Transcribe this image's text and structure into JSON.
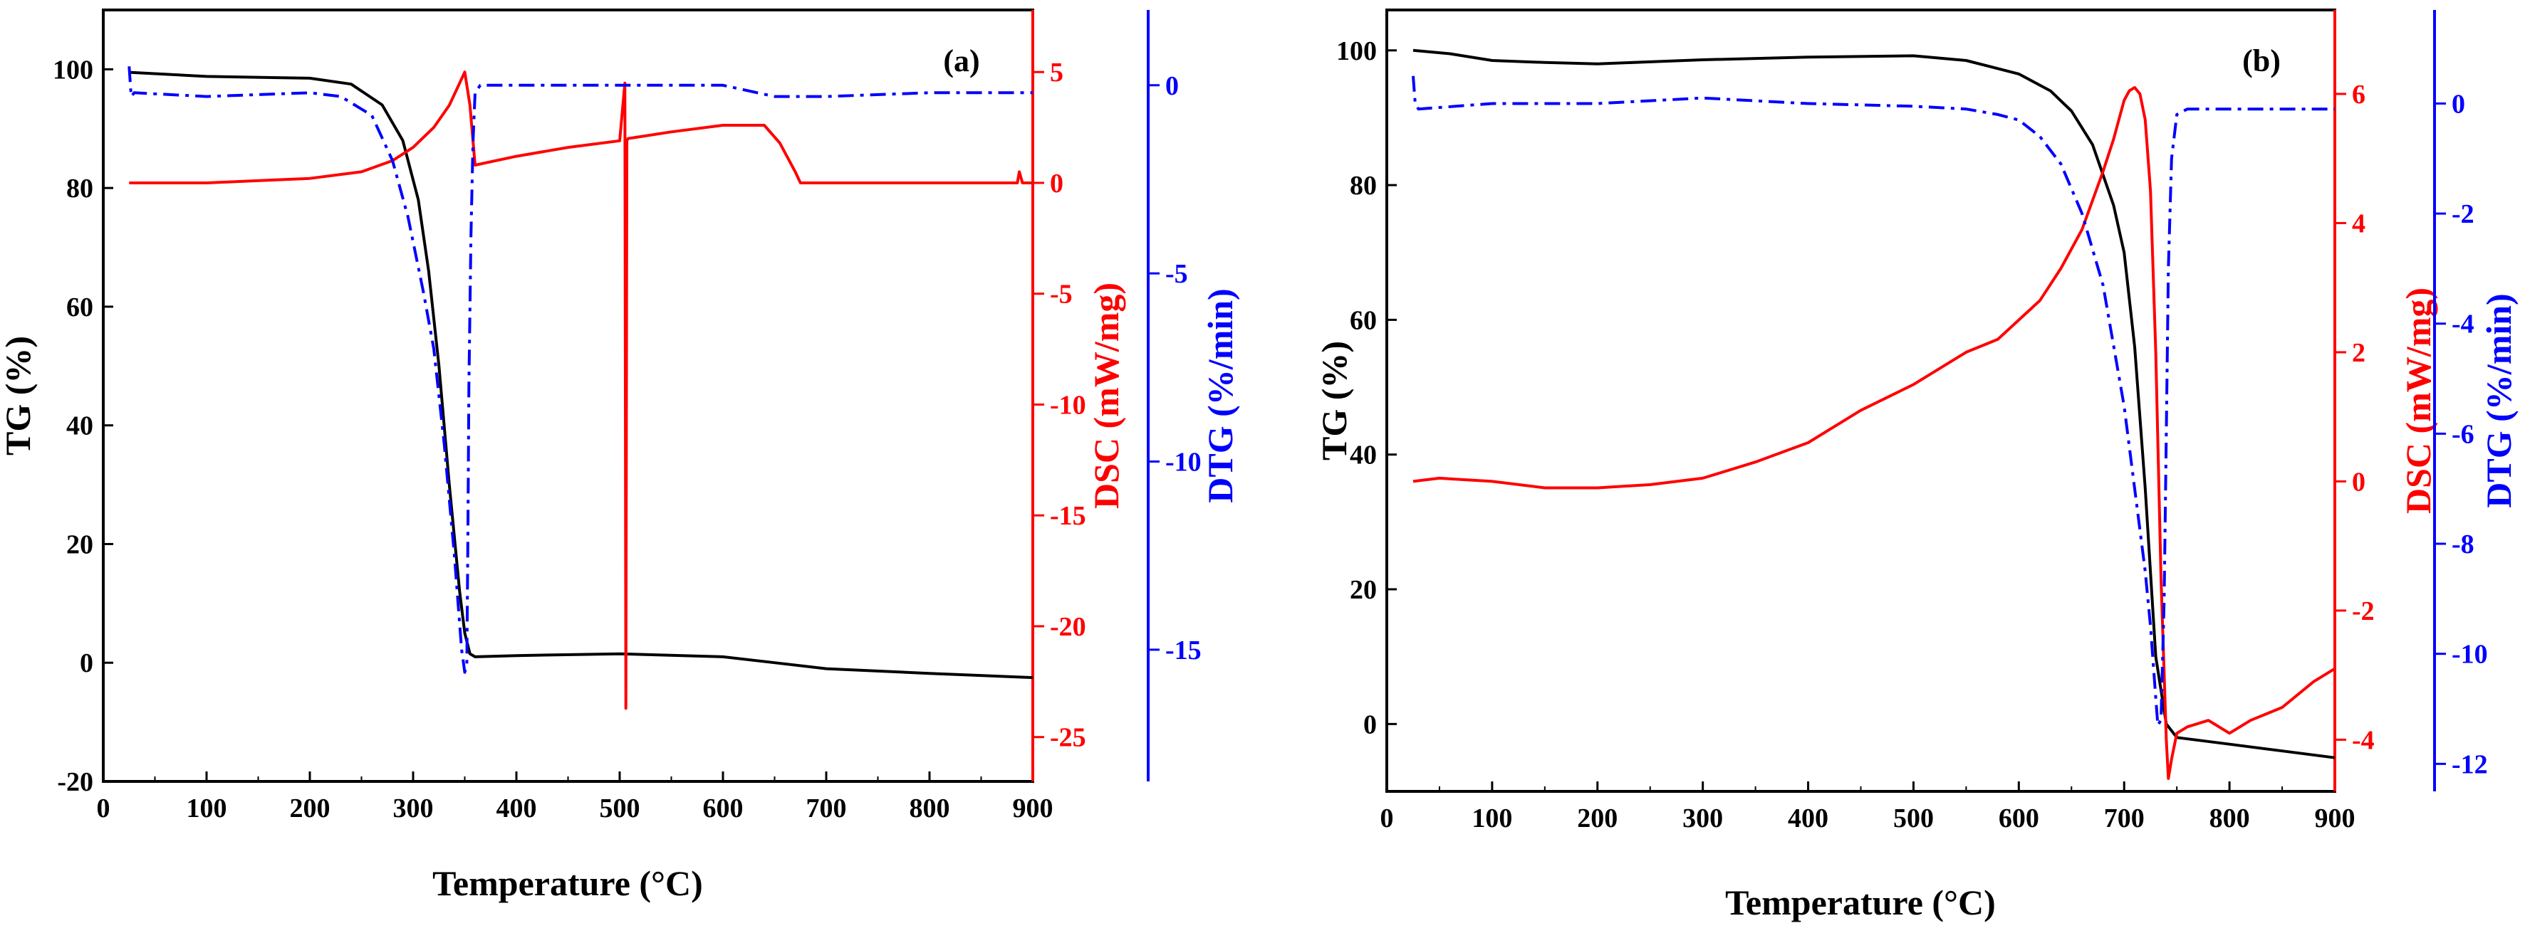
{
  "colors": {
    "tg": "#000000",
    "dsc": "#ff0000",
    "dtg": "#0000ff",
    "axis": "#000000"
  },
  "chart_data": [
    {
      "type": "line",
      "panel_label": "(a)",
      "xlabel": "Temperature (°C)",
      "xlim": [
        0,
        900
      ],
      "xticks": [
        0,
        100,
        200,
        300,
        400,
        500,
        600,
        700,
        800,
        900
      ],
      "axes": {
        "tg": {
          "label": "TG (%)",
          "lim": [
            -20,
            110
          ],
          "ticks": [
            -20,
            0,
            20,
            40,
            60,
            80,
            100
          ]
        },
        "dsc": {
          "label": "DSC (mW/mg)",
          "lim": [
            -27,
            7.8
          ],
          "ticks": [
            -25,
            -20,
            -15,
            -10,
            -5,
            0,
            5
          ]
        },
        "dtg": {
          "label": "DTG (%/min)",
          "lim": [
            -18.5,
            2
          ],
          "ticks": [
            -15,
            -10,
            -5,
            0
          ]
        }
      },
      "series": [
        {
          "name": "TG",
          "axis": "tg",
          "style": "solid",
          "x": [
            25,
            100,
            200,
            240,
            270,
            290,
            305,
            315,
            325,
            335,
            345,
            350,
            355,
            360,
            400,
            500,
            600,
            650,
            700,
            800,
            900
          ],
          "y": [
            99.5,
            98.8,
            98.5,
            97.5,
            94,
            88,
            78,
            66,
            50,
            30,
            12,
            5,
            1.5,
            1,
            1.2,
            1.5,
            1,
            0,
            -1,
            -1.8,
            -2.5
          ]
        },
        {
          "name": "DSC",
          "axis": "dsc",
          "style": "solid",
          "x": [
            25,
            100,
            200,
            250,
            280,
            300,
            320,
            335,
            345,
            350,
            355,
            360,
            400,
            450,
            500,
            505,
            506,
            507,
            508,
            550,
            600,
            640,
            655,
            670,
            675,
            700,
            800,
            885,
            887,
            890,
            900
          ],
          "y": [
            0,
            0,
            0.2,
            0.5,
            1,
            1.6,
            2.5,
            3.5,
            4.5,
            5,
            3.5,
            0.8,
            1.2,
            1.6,
            1.9,
            4.5,
            -23.7,
            1.9,
            2,
            2.3,
            2.6,
            2.6,
            1.8,
            0.5,
            0,
            0,
            0,
            0,
            0.5,
            0,
            0
          ]
        },
        {
          "name": "DTG",
          "axis": "dtg",
          "style": "dashdot",
          "x": [
            25,
            27,
            30,
            100,
            200,
            230,
            260,
            280,
            295,
            310,
            320,
            330,
            340,
            347,
            350,
            352,
            353,
            354,
            356,
            358,
            360,
            365,
            400,
            500,
            600,
            650,
            700,
            800,
            900
          ],
          "y": [
            0.5,
            -0.3,
            -0.2,
            -0.3,
            -0.2,
            -0.3,
            -0.8,
            -2,
            -3.5,
            -5.5,
            -7,
            -9.5,
            -12.5,
            -15,
            -15.6,
            -15.4,
            -12,
            -8,
            -4,
            -1.5,
            -0.2,
            0,
            0,
            0,
            0,
            -0.3,
            -0.3,
            -0.2,
            -0.2
          ]
        }
      ]
    },
    {
      "type": "line",
      "panel_label": "(b)",
      "xlabel": "Temperature (°C)",
      "xlim": [
        0,
        900
      ],
      "xticks": [
        0,
        100,
        200,
        300,
        400,
        500,
        600,
        700,
        800,
        900
      ],
      "axes": {
        "tg": {
          "label": "TG (%)",
          "lim": [
            -10,
            106
          ],
          "ticks": [
            0,
            20,
            40,
            60,
            80,
            100
          ]
        },
        "dsc": {
          "label": "DSC (mW/mg)",
          "lim": [
            -4.8,
            7.3
          ],
          "ticks": [
            -4,
            -2,
            0,
            2,
            4,
            6
          ]
        },
        "dtg": {
          "label": "DTG (%/min)",
          "lim": [
            -12.5,
            1.7
          ],
          "ticks": [
            -12,
            -10,
            -8,
            -6,
            -4,
            -2,
            0
          ]
        }
      },
      "series": [
        {
          "name": "TG",
          "axis": "tg",
          "style": "solid",
          "x": [
            25,
            60,
            100,
            150,
            200,
            250,
            300,
            400,
            500,
            550,
            600,
            630,
            650,
            670,
            690,
            700,
            710,
            720,
            730,
            740,
            750,
            800,
            850,
            900
          ],
          "y": [
            100,
            99.5,
            98.5,
            98.2,
            98,
            98.3,
            98.6,
            99,
            99.2,
            98.5,
            96.5,
            94,
            91,
            86,
            77,
            70,
            56,
            35,
            10,
            0,
            -2,
            -3,
            -4,
            -5
          ]
        },
        {
          "name": "DSC",
          "axis": "dsc",
          "style": "solid",
          "x": [
            25,
            50,
            100,
            150,
            200,
            250,
            300,
            350,
            400,
            450,
            500,
            550,
            580,
            600,
            620,
            640,
            660,
            680,
            690,
            700,
            705,
            710,
            715,
            720,
            725,
            730,
            735,
            740,
            742,
            745,
            750,
            760,
            780,
            800,
            820,
            850,
            880,
            900
          ],
          "y": [
            0,
            0.05,
            0,
            -0.1,
            -0.1,
            -0.05,
            0.05,
            0.3,
            0.6,
            1.1,
            1.5,
            2,
            2.2,
            2.5,
            2.8,
            3.3,
            3.9,
            4.8,
            5.3,
            5.9,
            6.05,
            6.1,
            6,
            5.6,
            4.5,
            2,
            -1.5,
            -4,
            -4.6,
            -4.3,
            -3.9,
            -3.8,
            -3.7,
            -3.9,
            -3.7,
            -3.5,
            -3.1,
            -2.9
          ]
        },
        {
          "name": "DTG",
          "axis": "dtg",
          "style": "dashdot",
          "x": [
            25,
            27,
            30,
            100,
            200,
            300,
            400,
            500,
            550,
            580,
            600,
            620,
            640,
            660,
            680,
            700,
            710,
            720,
            725,
            730,
            732,
            735,
            738,
            740,
            742,
            745,
            750,
            760,
            800,
            850,
            900
          ],
          "y": [
            0.5,
            0,
            -0.1,
            0,
            0,
            0.1,
            0,
            -0.05,
            -0.1,
            -0.2,
            -0.3,
            -0.6,
            -1.1,
            -2,
            -3.3,
            -5.5,
            -7,
            -8.5,
            -9.5,
            -10.8,
            -11.3,
            -11.2,
            -9,
            -6,
            -3,
            -1,
            -0.2,
            -0.1,
            -0.1,
            -0.1,
            -0.1
          ]
        }
      ]
    }
  ]
}
